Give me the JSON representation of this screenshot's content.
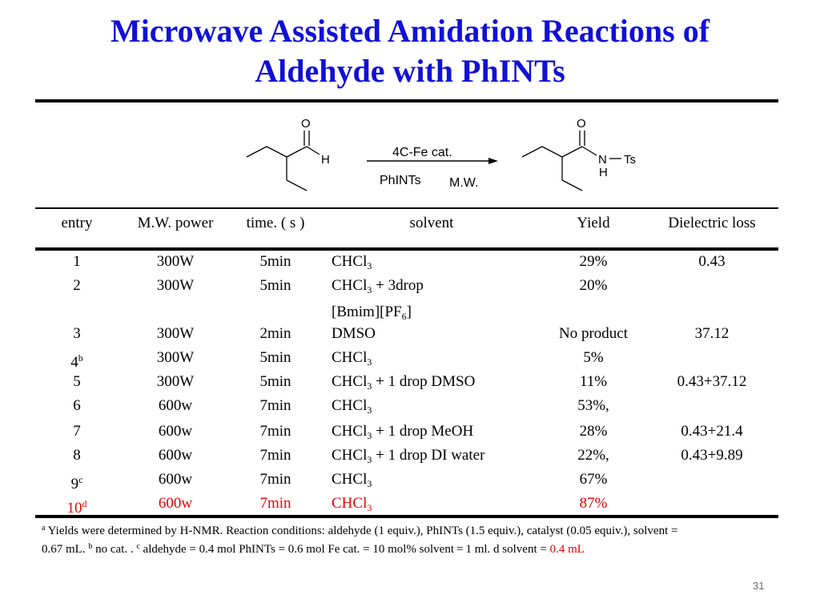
{
  "title": {
    "line1": "Microwave Assisted Amidation Reactions of",
    "line2": "Aldehyde with PhINTs"
  },
  "scheme": {
    "reactant": {
      "oxygen": "O",
      "hydrogen": "H"
    },
    "arrow_top": "4C-Fe cat.",
    "arrow_bottom_left": "PhINTs",
    "arrow_bottom_right": "M.W.",
    "product": {
      "oxygen": "O",
      "nitrogen": "N",
      "hydrogen": "H",
      "ts": "Ts"
    }
  },
  "table": {
    "headers": {
      "entry": "entry",
      "power": "M.W. power",
      "time": "time. ( s )",
      "solvent": "solvent",
      "yield": "Yield",
      "dielectric": "Dielectric loss"
    },
    "rows": [
      {
        "entry": "1",
        "power": "300W",
        "time": "5min",
        "solvent_main": "CHCl",
        "solvent_sub": "3",
        "solvent_tail": "",
        "yield": "29%",
        "dielectric": "0.43"
      },
      {
        "entry": "2",
        "power": "300W",
        "time": "5min",
        "solvent_main": "CHCl",
        "solvent_sub": "3",
        "solvent_tail": " + 3drop",
        "solvent_line2_main": "[Bmim][PF",
        "solvent_line2_sub": "6",
        "solvent_line2_tail": "]",
        "yield": "20%",
        "dielectric": ""
      },
      {
        "entry": "3",
        "power": "300W",
        "time": "2min",
        "solvent_main": "DMSO",
        "solvent_sub": "",
        "solvent_tail": "",
        "yield": "No product",
        "dielectric": "37.12"
      },
      {
        "entry": "4",
        "entry_sup": "b",
        "power": "300W",
        "time": "5min",
        "solvent_main": "CHCl",
        "solvent_sub": "3",
        "solvent_tail": "",
        "yield": "5%",
        "dielectric": ""
      },
      {
        "entry": "5",
        "power": "300W",
        "time": "5min",
        "solvent_main": "CHCl",
        "solvent_sub": "3",
        "solvent_tail": " + 1 drop DMSO",
        "yield": "11%",
        "dielectric": "0.43+37.12"
      },
      {
        "entry": "6",
        "power": "600w",
        "time": "7min",
        "solvent_main": "CHCl",
        "solvent_sub": "3",
        "solvent_tail": "",
        "yield": "53%,",
        "dielectric": ""
      },
      {
        "entry": "7",
        "power": "600w",
        "time": "7min",
        "solvent_main": "CHCl",
        "solvent_sub": "3",
        "solvent_tail": " + 1 drop MeOH",
        "yield": "28%",
        "dielectric": "0.43+21.4"
      },
      {
        "entry": "8",
        "power": "600w",
        "time": "7min",
        "solvent_main": "CHCl",
        "solvent_sub": "3",
        "solvent_tail": " + 1 drop DI water",
        "yield": "22%,",
        "dielectric": "0.43+9.89"
      },
      {
        "entry": "9",
        "entry_sup": "c",
        "power": "600w",
        "time": "7min",
        "solvent_main": "CHCl",
        "solvent_sub": "3",
        "solvent_tail": "",
        "yield": "67%",
        "dielectric": ""
      },
      {
        "entry": "10",
        "entry_sup": "d",
        "power": "600w",
        "time": "7min",
        "solvent_main": "CHCl",
        "solvent_sub": "3",
        "solvent_tail": "",
        "yield": "87%",
        "dielectric": ""
      }
    ]
  },
  "footnote": {
    "a_mark": "a",
    "a_text": " Yields were determined by H-NMR. Reaction conditions: aldehyde (1 equiv.), PhINTs (1.5 equiv.), catalyst (0.05 equiv.), solvent =",
    "line2_start": "0.67 mL.  ",
    "b_mark": "b",
    "b_text": " no cat. . ",
    "c_mark": "c",
    "c_text": " aldehyde = 0.4 mol  PhINTs = 0.6 mol Fe cat. = 10 mol% solvent = 1 ml. d solvent = ",
    "d_value": "0.4 mL"
  },
  "page_number": "31",
  "colors": {
    "title": "#1010d8",
    "highlight": "#e60000",
    "rule": "#000000"
  }
}
